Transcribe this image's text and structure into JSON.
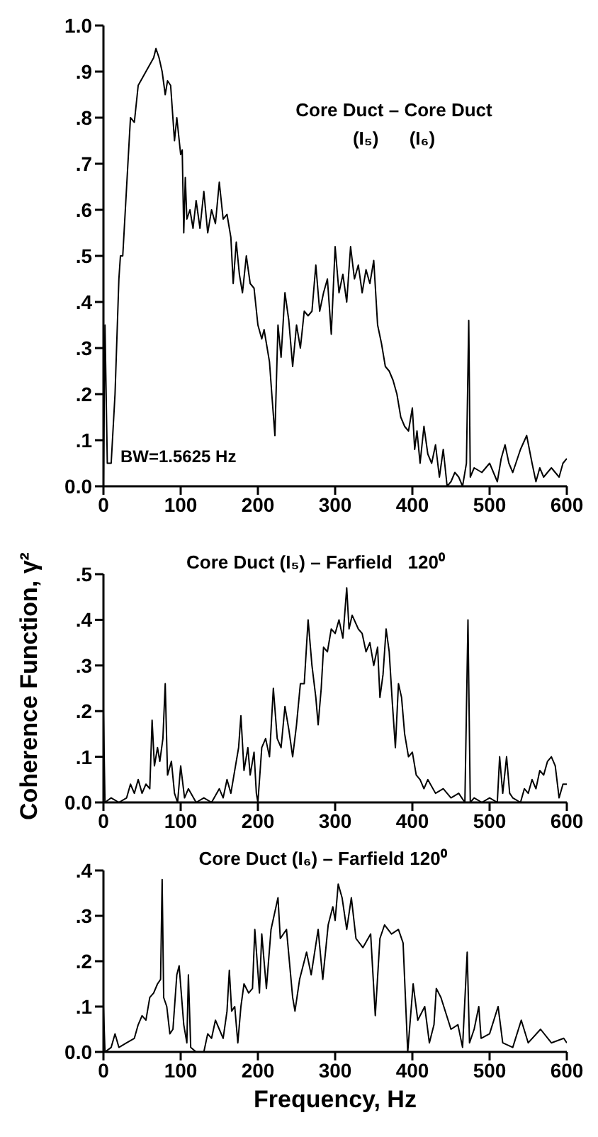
{
  "chart_data": [
    {
      "type": "line",
      "title": "Core Duct – Core Duct",
      "subtitle": "(I₅)      (I₆)",
      "annotations": [
        "BW=1.5625 Hz"
      ],
      "xlim": [
        0,
        600
      ],
      "xticks": [
        0,
        100,
        200,
        300,
        400,
        500,
        600
      ],
      "ylim": [
        0,
        1
      ],
      "yticks": [
        {
          "value": 0,
          "label": "0.0"
        },
        {
          "value": 0.1,
          "label": ".1"
        },
        {
          "value": 0.2,
          "label": ".2"
        },
        {
          "value": 0.3,
          "label": ".3"
        },
        {
          "value": 0.4,
          "label": ".4"
        },
        {
          "value": 0.5,
          "label": ".5"
        },
        {
          "value": 0.6,
          "label": ".6"
        },
        {
          "value": 0.7,
          "label": ".7"
        },
        {
          "value": 0.8,
          "label": ".8"
        },
        {
          "value": 0.9,
          "label": ".9"
        },
        {
          "value": 1,
          "label": "1.0"
        }
      ],
      "grid": false,
      "marker": "none",
      "line_style": "solid",
      "series": [
        {
          "color": "#000000",
          "x": [
            0,
            2,
            5,
            10,
            15,
            20,
            22,
            25,
            30,
            35,
            40,
            45,
            55,
            65,
            68,
            72,
            76,
            80,
            83,
            87,
            92,
            95,
            100,
            102,
            104,
            106,
            108,
            112,
            116,
            120,
            125,
            130,
            135,
            140,
            145,
            150,
            155,
            160,
            165,
            168,
            172,
            176,
            180,
            185,
            190,
            195,
            200,
            205,
            208,
            212,
            215,
            218,
            222,
            226,
            230,
            235,
            240,
            245,
            250,
            255,
            260,
            265,
            270,
            275,
            280,
            285,
            290,
            295,
            300,
            305,
            310,
            315,
            320,
            325,
            330,
            335,
            340,
            345,
            350,
            355,
            360,
            365,
            370,
            375,
            380,
            385,
            390,
            395,
            400,
            403,
            406,
            410,
            415,
            420,
            425,
            430,
            435,
            440,
            445,
            450,
            455,
            460,
            465,
            470,
            473,
            475,
            480,
            490,
            500,
            510,
            515,
            520,
            525,
            530,
            540,
            548,
            555,
            560,
            565,
            570,
            580,
            590,
            595,
            600
          ],
          "values": [
            0,
            0.35,
            0.05,
            0.05,
            0.2,
            0.45,
            0.5,
            0.5,
            0.65,
            0.8,
            0.79,
            0.87,
            0.9,
            0.93,
            0.95,
            0.93,
            0.9,
            0.85,
            0.88,
            0.87,
            0.75,
            0.8,
            0.72,
            0.73,
            0.55,
            0.67,
            0.58,
            0.6,
            0.56,
            0.62,
            0.56,
            0.64,
            0.55,
            0.6,
            0.57,
            0.66,
            0.58,
            0.59,
            0.54,
            0.44,
            0.53,
            0.46,
            0.42,
            0.5,
            0.44,
            0.43,
            0.35,
            0.32,
            0.34,
            0.3,
            0.27,
            0.2,
            0.11,
            0.35,
            0.28,
            0.42,
            0.36,
            0.26,
            0.35,
            0.3,
            0.38,
            0.37,
            0.38,
            0.48,
            0.38,
            0.42,
            0.45,
            0.33,
            0.52,
            0.42,
            0.46,
            0.4,
            0.52,
            0.45,
            0.48,
            0.42,
            0.47,
            0.44,
            0.49,
            0.35,
            0.31,
            0.26,
            0.25,
            0.23,
            0.2,
            0.15,
            0.13,
            0.12,
            0.17,
            0.08,
            0.12,
            0.05,
            0.13,
            0.07,
            0.05,
            0.09,
            0.02,
            0.08,
            0,
            0.01,
            0.03,
            0.02,
            0,
            0.05,
            0.36,
            0.02,
            0.04,
            0.03,
            0.05,
            0.01,
            0.06,
            0.09,
            0.05,
            0.03,
            0.08,
            0.11,
            0.05,
            0.01,
            0.04,
            0.02,
            0.04,
            0.02,
            0.05,
            0.06
          ]
        }
      ]
    },
    {
      "type": "line",
      "title": "Core Duct (I₅) – Farfield   120⁰",
      "ylabel": "Coherence Function, γ²",
      "xlim": [
        0,
        600
      ],
      "xticks": [
        0,
        100,
        200,
        300,
        400,
        500,
        600
      ],
      "ylim": [
        0,
        0.5
      ],
      "yticks": [
        {
          "value": 0,
          "label": "0.0"
        },
        {
          "value": 0.1,
          "label": ".1"
        },
        {
          "value": 0.2,
          "label": ".2"
        },
        {
          "value": 0.3,
          "label": ".3"
        },
        {
          "value": 0.4,
          "label": ".4"
        },
        {
          "value": 0.5,
          "label": ".5"
        }
      ],
      "grid": false,
      "marker": "none",
      "line_style": "solid",
      "series": [
        {
          "color": "#000000",
          "x": [
            0,
            2,
            10,
            20,
            30,
            35,
            40,
            45,
            50,
            55,
            60,
            63,
            66,
            70,
            73,
            77,
            80,
            83,
            88,
            92,
            96,
            100,
            105,
            110,
            120,
            130,
            140,
            150,
            155,
            160,
            165,
            170,
            175,
            178,
            182,
            187,
            190,
            195,
            198,
            200,
            205,
            210,
            215,
            220,
            225,
            230,
            235,
            240,
            245,
            250,
            255,
            260,
            265,
            270,
            275,
            278,
            282,
            285,
            290,
            295,
            300,
            305,
            310,
            315,
            318,
            322,
            330,
            335,
            340,
            345,
            350,
            355,
            358,
            362,
            366,
            370,
            374,
            378,
            382,
            386,
            390,
            395,
            400,
            405,
            410,
            415,
            420,
            430,
            440,
            450,
            460,
            468,
            472,
            475,
            480,
            490,
            500,
            510,
            513,
            517,
            522,
            526,
            530,
            540,
            545,
            550,
            555,
            560,
            565,
            570,
            575,
            580,
            585,
            590,
            595,
            600
          ],
          "values": [
            0.2,
            0,
            0.01,
            0,
            0.01,
            0.04,
            0.02,
            0.05,
            0.02,
            0.04,
            0.03,
            0.18,
            0.08,
            0.12,
            0.09,
            0.14,
            0.26,
            0.06,
            0.09,
            0.02,
            0,
            0.08,
            0.01,
            0.03,
            0,
            0.01,
            0,
            0.03,
            0.01,
            0.05,
            0.02,
            0.07,
            0.12,
            0.19,
            0.07,
            0.12,
            0.06,
            0.11,
            0.02,
            0,
            0.12,
            0.14,
            0.1,
            0.25,
            0.14,
            0.12,
            0.21,
            0.16,
            0.1,
            0.17,
            0.26,
            0.26,
            0.4,
            0.3,
            0.23,
            0.17,
            0.25,
            0.34,
            0.33,
            0.38,
            0.37,
            0.4,
            0.36,
            0.47,
            0.38,
            0.41,
            0.38,
            0.37,
            0.33,
            0.35,
            0.3,
            0.34,
            0.23,
            0.28,
            0.38,
            0.33,
            0.22,
            0.12,
            0.26,
            0.23,
            0.15,
            0.1,
            0.11,
            0.06,
            0.05,
            0.03,
            0.05,
            0.02,
            0.03,
            0.01,
            0.02,
            0,
            0.4,
            0,
            0.01,
            0,
            0.01,
            0,
            0.1,
            0.02,
            0.1,
            0.02,
            0.01,
            0,
            0.03,
            0.02,
            0.05,
            0.03,
            0.07,
            0.06,
            0.09,
            0.1,
            0.08,
            0.01,
            0.04,
            0.04
          ]
        }
      ]
    },
    {
      "type": "line",
      "title": "Core Duct (I₆) – Farfield 120⁰",
      "xlabel": "Frequency, Hz",
      "xlim": [
        0,
        600
      ],
      "xticks": [
        0,
        100,
        200,
        300,
        400,
        500,
        600
      ],
      "ylim": [
        0,
        0.4
      ],
      "yticks": [
        {
          "value": 0,
          "label": "0.0"
        },
        {
          "value": 0.1,
          "label": ".1"
        },
        {
          "value": 0.2,
          "label": ".2"
        },
        {
          "value": 0.3,
          "label": ".3"
        },
        {
          "value": 0.4,
          "label": ".4"
        }
      ],
      "grid": false,
      "marker": "none",
      "line_style": "solid",
      "series": [
        {
          "color": "#000000",
          "x": [
            0,
            2,
            10,
            15,
            20,
            30,
            40,
            45,
            50,
            55,
            60,
            65,
            70,
            74,
            76,
            78,
            82,
            86,
            90,
            95,
            98,
            104,
            108,
            110,
            113,
            120,
            130,
            135,
            140,
            145,
            150,
            155,
            160,
            163,
            166,
            170,
            174,
            178,
            182,
            188,
            193,
            196,
            202,
            205,
            211,
            217,
            226,
            229,
            237,
            245,
            248,
            254,
            263,
            269,
            278,
            284,
            291,
            297,
            300,
            304,
            309,
            315,
            321,
            327,
            336,
            346,
            352,
            358,
            364,
            373,
            382,
            388,
            394,
            401,
            407,
            416,
            422,
            428,
            431,
            437,
            450,
            459,
            465,
            471,
            474,
            480,
            486,
            489,
            500,
            511,
            517,
            530,
            541,
            550,
            566,
            580,
            596,
            600
          ],
          "values": [
            0.1,
            0,
            0.01,
            0.04,
            0.01,
            0.02,
            0.03,
            0.06,
            0.08,
            0.07,
            0.12,
            0.13,
            0.15,
            0.16,
            0.38,
            0.12,
            0.1,
            0.04,
            0.05,
            0.17,
            0.19,
            0.06,
            0.02,
            0.17,
            0.01,
            0,
            0,
            0.04,
            0.03,
            0.07,
            0.05,
            0.03,
            0.09,
            0.18,
            0.09,
            0.1,
            0.02,
            0.1,
            0.15,
            0.13,
            0.14,
            0.27,
            0.13,
            0.26,
            0.14,
            0.27,
            0.34,
            0.25,
            0.27,
            0.12,
            0.09,
            0.16,
            0.22,
            0.17,
            0.27,
            0.16,
            0.28,
            0.32,
            0.29,
            0.37,
            0.34,
            0.27,
            0.34,
            0.25,
            0.23,
            0.26,
            0.08,
            0.25,
            0.28,
            0.26,
            0.27,
            0.24,
            0,
            0.15,
            0.07,
            0.1,
            0.02,
            0.06,
            0.14,
            0.12,
            0.05,
            0.06,
            0.01,
            0.22,
            0.02,
            0.05,
            0.1,
            0.03,
            0.04,
            0.1,
            0.02,
            0.01,
            0.07,
            0.02,
            0.05,
            0.02,
            0.03,
            0.02
          ]
        }
      ]
    }
  ]
}
